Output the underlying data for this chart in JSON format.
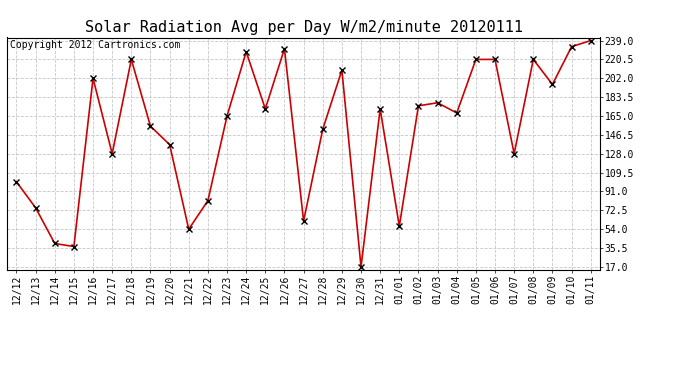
{
  "title": "Solar Radiation Avg per Day W/m2/minute 20120111",
  "copyright": "Copyright 2012 Cartronics.com",
  "x_labels": [
    "12/12",
    "12/13",
    "12/14",
    "12/15",
    "12/16",
    "12/17",
    "12/18",
    "12/19",
    "12/20",
    "12/21",
    "12/22",
    "12/23",
    "12/24",
    "12/25",
    "12/26",
    "12/27",
    "12/28",
    "12/29",
    "12/30",
    "12/31",
    "01/01",
    "01/02",
    "01/03",
    "01/04",
    "01/05",
    "01/06",
    "01/07",
    "01/08",
    "01/09",
    "01/10",
    "01/11"
  ],
  "values": [
    100.5,
    75.0,
    40.0,
    37.0,
    202.0,
    128.0,
    220.5,
    155.0,
    137.0,
    54.0,
    82.0,
    165.0,
    228.0,
    172.0,
    231.0,
    62.0,
    152.0,
    210.0,
    17.0,
    172.0,
    57.0,
    175.0,
    178.0,
    168.0,
    220.5,
    220.5,
    128.0,
    220.5,
    196.0,
    233.0,
    239.0
  ],
  "y_ticks": [
    17.0,
    35.5,
    54.0,
    72.5,
    91.0,
    109.5,
    128.0,
    146.5,
    165.0,
    183.5,
    202.0,
    220.5,
    239.0
  ],
  "y_min": 17.0,
  "y_max": 239.0,
  "line_color": "#cc0000",
  "marker": "x",
  "marker_color": "#000000",
  "background_color": "#ffffff",
  "grid_color": "#c8c8c8",
  "title_fontsize": 11,
  "tick_fontsize": 7,
  "copyright_fontsize": 7
}
